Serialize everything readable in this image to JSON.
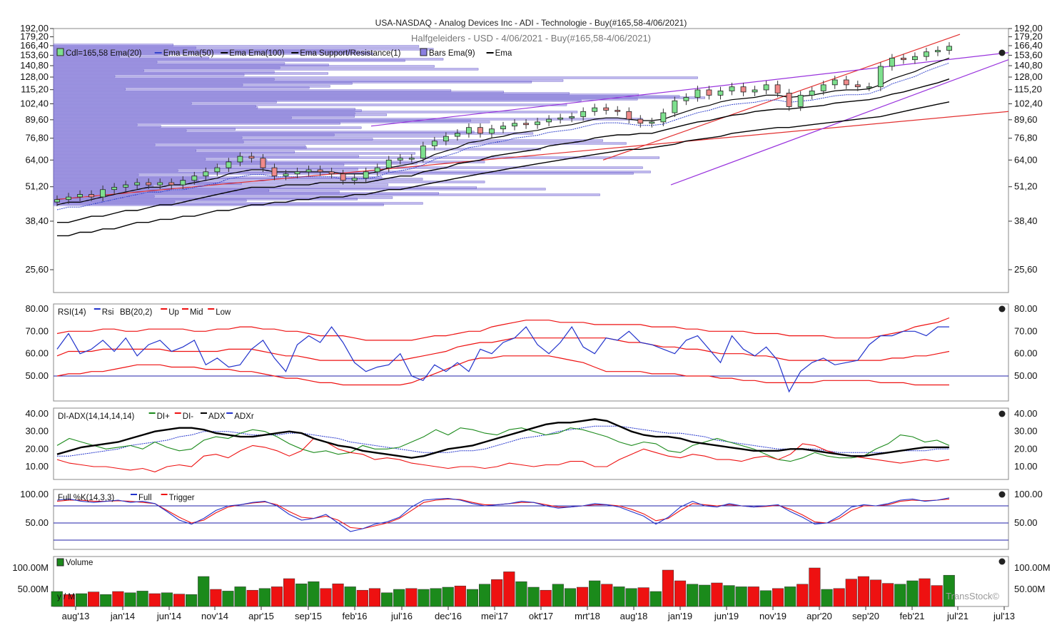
{
  "header": {
    "title": "USA-NASDAQ - Analog Devices Inc - ADI - Technologie - Buy(#165,58-4/06/2021)",
    "subtitle": "Halfgeleiders - USD - 4/06/2021 - Buy(#165,58-4/06/2021)"
  },
  "colors": {
    "up": "#7ee08e",
    "down": "#f08a8a",
    "ema": "#000000",
    "ema9": "#3344cc",
    "bars": "#8a7ee0",
    "trend_red": "#e23030",
    "trend_purple": "#9933dd",
    "vol_up": "#1b8a1b",
    "vol_down": "#ee1111",
    "grid": "#2222aa"
  },
  "x_axis": [
    "aug'13",
    "jan'14",
    "jun'14",
    "nov'14",
    "apr'15",
    "sep'15",
    "feb'16",
    "jul'16",
    "dec'16",
    "mei'17",
    "okt'17",
    "mrt'18",
    "aug'18",
    "jan'19",
    "jun'19",
    "nov'19",
    "apr'20",
    "sep'20",
    "feb'21",
    "jul'21",
    "jul'13"
  ],
  "panels": {
    "price": {
      "legend": "Cdl=165,58  Ema(20)  —Ema  Ema(50)  —Ema  Ema(100)  —Ema  Support/Resistance(1)  Bars  Ema(9)  —Ema",
      "legend_items": [
        {
          "label": "Cdl=165,58  Ema(20)",
          "icon": "candle-icon"
        },
        {
          "label": "Ema  Ema(50)",
          "icon": "line-icon-blue"
        },
        {
          "label": "Ema  Ema(100)",
          "icon": "line-icon-black"
        },
        {
          "label": "Ema  Support/Resistance(1)",
          "icon": "line-icon-black"
        },
        {
          "label": "Bars  Ema(9)",
          "icon": "bars-icon"
        },
        {
          "label": "Ema",
          "icon": "line-icon-black"
        }
      ],
      "y_ticks": [
        "192,00",
        "179,20",
        "166,40",
        "153,60",
        "140,80",
        "128,00",
        "115,20",
        "102,40",
        "89,60",
        "76,80",
        "64,00",
        "51,20",
        "38,40",
        "25,60"
      ],
      "y_values": [
        192,
        179.2,
        166.4,
        153.6,
        140.8,
        128,
        115.2,
        102.4,
        89.6,
        76.8,
        64,
        51.2,
        38.4,
        25.6
      ],
      "scale": "log"
    },
    "rsi": {
      "legend_items": [
        {
          "label": "RSI(14)",
          "color": "#111111"
        },
        {
          "label": "Rsi",
          "color": "#2233cc"
        },
        {
          "label": "BB(20,2)",
          "color": "#111111"
        },
        {
          "label": "Up",
          "color": "#ee1111"
        },
        {
          "label": "Mid",
          "color": "#ee1111"
        },
        {
          "label": "Low",
          "color": "#ee1111"
        }
      ],
      "y_ticks": [
        "80.00",
        "70.00",
        "60.00",
        "50.00"
      ],
      "y_values": [
        80,
        70,
        60,
        50
      ]
    },
    "adx": {
      "legend_items": [
        {
          "label": "DI-ADX(14,14,14,14)",
          "color": "#111111"
        },
        {
          "label": "DI+",
          "color": "#1b8a1b"
        },
        {
          "label": "DI-",
          "color": "#ee1111"
        },
        {
          "label": "ADX",
          "color": "#000000"
        },
        {
          "label": "ADXr",
          "color": "#2233cc"
        }
      ],
      "y_ticks": [
        "40.00",
        "30.00",
        "20.00",
        "10.00"
      ],
      "y_values": [
        40,
        30,
        20,
        10
      ]
    },
    "stoch": {
      "legend_items": [
        {
          "label": "Full %K(14,3,3)",
          "color": "#111111"
        },
        {
          "label": "Full",
          "color": "#2233cc"
        },
        {
          "label": "Trigger",
          "color": "#ee1111"
        }
      ],
      "y_ticks": [
        "100.00",
        "50.00"
      ],
      "y_values": [
        100,
        50
      ]
    },
    "volume": {
      "legend": "Volume",
      "y_ticks": [
        "100.00M",
        "50.00M"
      ],
      "y_values": [
        100,
        50
      ],
      "corner_text": "y / M"
    }
  },
  "watermark": "TransStock©",
  "chart_data": [
    {
      "type": "candlestick",
      "title": "USA-NASDAQ - Analog Devices Inc - ADI - Technologie - Buy(#165,58-4/06/2021)",
      "period": "monthly",
      "x_range": [
        "aug'13",
        "jul'21"
      ],
      "last_close": 165.58,
      "ylim": [
        20,
        192
      ],
      "closes": [
        46,
        47,
        48,
        47,
        50,
        51,
        52,
        53,
        52,
        53,
        52,
        54,
        56,
        58,
        60,
        63,
        66,
        65,
        60,
        56,
        57,
        58,
        59,
        58,
        57,
        54,
        55,
        58,
        60,
        64,
        65,
        65,
        72,
        75,
        78,
        80,
        84,
        80,
        83,
        85,
        87,
        86,
        88,
        90,
        91,
        92,
        96,
        99,
        97,
        96,
        90,
        87,
        88,
        95,
        105,
        108,
        115,
        110,
        114,
        118,
        113,
        115,
        120,
        112,
        100,
        110,
        114,
        120,
        125,
        120,
        118,
        118,
        140,
        150,
        148,
        152,
        158,
        160,
        165.58
      ],
      "ema20": [
        44,
        45,
        45,
        46,
        47,
        48,
        49,
        50,
        51,
        51,
        52,
        52,
        53,
        54,
        55,
        57,
        58,
        59,
        59,
        58,
        58,
        58,
        58,
        58,
        58,
        57,
        57,
        57,
        58,
        60,
        61,
        62,
        64,
        67,
        69,
        71,
        74,
        75,
        77,
        78,
        80,
        81,
        82,
        84,
        85,
        86,
        88,
        90,
        91,
        91,
        90,
        89,
        89,
        90,
        93,
        96,
        99,
        101,
        104,
        106,
        107,
        108,
        110,
        110,
        108,
        109,
        110,
        112,
        114,
        115,
        115,
        116,
        120,
        126,
        130,
        134,
        140,
        145,
        150
      ],
      "ema50": [
        38,
        38,
        39,
        40,
        40,
        41,
        42,
        42,
        43,
        44,
        44,
        45,
        46,
        47,
        48,
        49,
        50,
        51,
        51,
        51,
        52,
        52,
        52,
        53,
        53,
        53,
        53,
        53,
        54,
        55,
        56,
        56,
        58,
        59,
        60,
        62,
        63,
        64,
        66,
        67,
        68,
        69,
        70,
        72,
        73,
        74,
        75,
        77,
        78,
        79,
        79,
        80,
        80,
        82,
        84,
        86,
        88,
        89,
        91,
        93,
        94,
        96,
        97,
        98,
        98,
        99,
        100,
        101,
        103,
        104,
        105,
        106,
        108,
        111,
        113,
        116,
        119,
        122,
        126
      ],
      "ema100": [
        34,
        34,
        35,
        35,
        36,
        36,
        37,
        38,
        38,
        39,
        39,
        40,
        40,
        41,
        42,
        42,
        43,
        44,
        44,
        45,
        45,
        46,
        46,
        47,
        47,
        47,
        48,
        48,
        49,
        50,
        50,
        51,
        52,
        53,
        54,
        55,
        56,
        57,
        58,
        59,
        60,
        61,
        62,
        63,
        64,
        65,
        66,
        67,
        68,
        69,
        70,
        70,
        71,
        72,
        73,
        75,
        76,
        77,
        78,
        80,
        81,
        82,
        83,
        84,
        84,
        85,
        86,
        87,
        88,
        89,
        90,
        91,
        92,
        94,
        96,
        98,
        100,
        102,
        104
      ],
      "rsi": [
        62,
        69,
        60,
        62,
        66,
        61,
        67,
        59,
        64,
        66,
        61,
        63,
        66,
        55,
        58,
        54,
        55,
        62,
        66,
        58,
        52,
        64,
        68,
        65,
        72,
        65,
        56,
        52,
        54,
        55,
        60,
        50,
        48,
        55,
        52,
        56,
        52,
        62,
        60,
        65,
        67,
        72,
        64,
        60,
        65,
        72,
        63,
        60,
        67,
        66,
        70,
        65,
        64,
        62,
        60,
        66,
        68,
        62,
        56,
        68,
        62,
        59,
        63,
        57,
        43,
        52,
        56,
        58,
        55,
        56,
        57,
        64,
        68,
        68,
        70,
        70,
        68,
        72,
        72
      ],
      "bb_up": [
        69,
        70,
        70,
        70,
        71,
        71,
        70,
        70,
        71,
        71,
        71,
        71,
        70,
        70,
        71,
        71,
        72,
        72,
        71,
        71,
        70,
        70,
        69,
        68,
        68,
        68,
        67,
        66,
        66,
        66,
        66,
        66,
        67,
        68,
        68,
        69,
        70,
        70,
        72,
        73,
        74,
        75,
        75,
        75,
        74,
        74,
        74,
        73,
        73,
        73,
        73,
        73,
        72,
        72,
        72,
        71,
        71,
        70,
        70,
        70,
        70,
        69,
        69,
        69,
        68,
        68,
        68,
        68,
        67,
        67,
        67,
        67,
        68,
        69,
        70,
        72,
        73,
        74,
        76
      ],
      "bb_mid": [
        59,
        61,
        61,
        61,
        62,
        62,
        62,
        62,
        62,
        62,
        61,
        61,
        61,
        61,
        61,
        62,
        62,
        62,
        61,
        60,
        59,
        59,
        58,
        57,
        57,
        57,
        57,
        57,
        57,
        57,
        57,
        58,
        59,
        60,
        61,
        63,
        64,
        65,
        65,
        66,
        67,
        67,
        67,
        67,
        67,
        67,
        67,
        67,
        67,
        66,
        65,
        65,
        64,
        63,
        63,
        62,
        62,
        61,
        60,
        60,
        60,
        59,
        59,
        58,
        57,
        57,
        57,
        57,
        57,
        57,
        57,
        57,
        57,
        58,
        58,
        59,
        59,
        60,
        61
      ],
      "bb_low": [
        50,
        51,
        51,
        52,
        52,
        53,
        54,
        55,
        55,
        55,
        54,
        54,
        54,
        53,
        53,
        53,
        52,
        52,
        51,
        50,
        49,
        49,
        48,
        47,
        47,
        46,
        46,
        46,
        46,
        46,
        46,
        47,
        49,
        51,
        53,
        55,
        57,
        58,
        58,
        59,
        59,
        59,
        59,
        59,
        58,
        57,
        56,
        54,
        52,
        52,
        52,
        52,
        51,
        51,
        51,
        50,
        50,
        50,
        49,
        49,
        48,
        48,
        47,
        47,
        47,
        47,
        47,
        48,
        48,
        48,
        48,
        48,
        47,
        47,
        47,
        46,
        46,
        46,
        46
      ],
      "di_plus": [
        22,
        26,
        24,
        22,
        20,
        21,
        22,
        20,
        24,
        21,
        19,
        20,
        25,
        27,
        26,
        29,
        31,
        30,
        27,
        23,
        20,
        18,
        19,
        17,
        18,
        22,
        20,
        20,
        21,
        24,
        27,
        31,
        28,
        32,
        31,
        29,
        28,
        31,
        32,
        30,
        28,
        29,
        32,
        31,
        29,
        27,
        24,
        22,
        24,
        23,
        19,
        18,
        22,
        24,
        26,
        24,
        22,
        20,
        17,
        14,
        13,
        15,
        18,
        16,
        15,
        15,
        16,
        20,
        23,
        28,
        27,
        24,
        25,
        22
      ],
      "di_minus": [
        14,
        12,
        11,
        10,
        10,
        9,
        8,
        9,
        7,
        10,
        11,
        10,
        16,
        17,
        15,
        19,
        22,
        21,
        19,
        16,
        19,
        26,
        24,
        20,
        18,
        17,
        14,
        15,
        14,
        12,
        11,
        10,
        9,
        10,
        10,
        9,
        10,
        12,
        11,
        10,
        11,
        11,
        13,
        13,
        10,
        10,
        14,
        17,
        20,
        18,
        16,
        15,
        17,
        16,
        14,
        14,
        13,
        15,
        16,
        14,
        17,
        23,
        22,
        19,
        17,
        16,
        15,
        14,
        13,
        12,
        13,
        14,
        13,
        14
      ],
      "adx": [
        17,
        19,
        21,
        22,
        23,
        24,
        26,
        28,
        30,
        31,
        32,
        32,
        31,
        29,
        28,
        27,
        27,
        28,
        29,
        30,
        29,
        26,
        24,
        22,
        21,
        19,
        18,
        17,
        16,
        15,
        16,
        18,
        20,
        21,
        22,
        24,
        26,
        28,
        30,
        32,
        34,
        35,
        35,
        36,
        37,
        36,
        33,
        30,
        28,
        27,
        27,
        26,
        24,
        23,
        22,
        21,
        20,
        19,
        19,
        19,
        20,
        20,
        19,
        18,
        17,
        16,
        16,
        17,
        18,
        19,
        20,
        21,
        21,
        21
      ],
      "adxr": [
        16,
        16,
        17,
        18,
        19,
        20,
        22,
        23,
        24,
        25,
        27,
        28,
        30,
        30,
        30,
        29,
        28,
        28,
        28,
        29,
        29,
        28,
        27,
        26,
        24,
        23,
        22,
        21,
        20,
        19,
        18,
        18,
        18,
        19,
        19,
        20,
        22,
        24,
        26,
        27,
        28,
        30,
        31,
        32,
        33,
        33,
        33,
        32,
        31,
        30,
        29,
        29,
        28,
        27,
        25,
        24,
        23,
        22,
        21,
        20,
        20,
        20,
        20,
        19,
        18,
        18,
        18,
        18,
        18,
        19,
        19,
        19,
        20,
        20
      ],
      "stoch_full": [
        90,
        92,
        88,
        86,
        88,
        90,
        86,
        88,
        84,
        70,
        55,
        48,
        58,
        72,
        80,
        82,
        86,
        88,
        80,
        65,
        55,
        58,
        65,
        50,
        35,
        40,
        48,
        52,
        60,
        78,
        90,
        92,
        93,
        90,
        84,
        80,
        82,
        84,
        88,
        86,
        80,
        76,
        78,
        80,
        84,
        82,
        78,
        70,
        62,
        48,
        60,
        78,
        88,
        80,
        78,
        84,
        80,
        78,
        80,
        82,
        70,
        60,
        48,
        50,
        62,
        78,
        82,
        80,
        84,
        90,
        92,
        88,
        90,
        94
      ],
      "stoch_trigger": [
        88,
        90,
        90,
        88,
        88,
        89,
        88,
        86,
        84,
        72,
        60,
        50,
        55,
        68,
        78,
        82,
        85,
        87,
        82,
        70,
        60,
        58,
        62,
        55,
        42,
        40,
        45,
        50,
        58,
        72,
        86,
        90,
        92,
        91,
        86,
        82,
        82,
        84,
        86,
        86,
        82,
        78,
        78,
        80,
        82,
        82,
        80,
        74,
        66,
        54,
        58,
        72,
        84,
        82,
        80,
        82,
        80,
        78,
        79,
        81,
        74,
        64,
        52,
        50,
        58,
        72,
        80,
        80,
        82,
        88,
        90,
        89,
        90,
        92
      ],
      "volume_million": [
        45,
        38,
        40,
        44,
        38,
        45,
        42,
        46,
        40,
        42,
        39,
        38,
        80,
        50,
        46,
        56,
        48,
        52,
        56,
        75,
        63,
        68,
        52,
        63,
        56,
        48,
        52,
        42,
        50,
        52,
        50,
        52,
        55,
        58,
        50,
        62,
        73,
        91,
        68,
        55,
        48,
        62,
        52,
        55,
        70,
        62,
        56,
        52,
        54,
        45,
        95,
        70,
        62,
        60,
        65,
        59,
        56,
        56,
        47,
        52,
        56,
        62,
        100,
        50,
        52,
        74,
        80,
        72,
        64,
        62,
        70,
        75,
        59,
        83
      ],
      "volume_up": [
        true,
        false,
        true,
        false,
        true,
        false,
        true,
        true,
        false,
        true,
        false,
        true,
        true,
        false,
        true,
        true,
        false,
        true,
        false,
        false,
        true,
        true,
        false,
        false,
        true,
        false,
        false,
        true,
        true,
        false,
        true,
        true,
        true,
        false,
        true,
        true,
        false,
        false,
        true,
        true,
        false,
        true,
        true,
        false,
        true,
        false,
        true,
        true,
        false,
        true,
        false,
        false,
        true,
        true,
        false,
        true,
        true,
        false,
        true,
        false,
        true,
        false,
        false,
        true,
        false,
        false,
        false,
        false,
        false,
        true,
        true,
        false,
        false,
        true
      ]
    }
  ]
}
